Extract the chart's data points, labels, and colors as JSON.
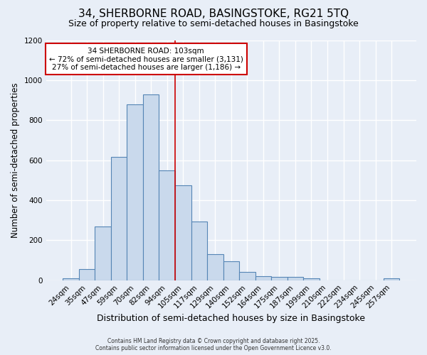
{
  "title_line1": "34, SHERBORNE ROAD, BASINGSTOKE, RG21 5TQ",
  "title_line2": "Size of property relative to semi-detached houses in Basingstoke",
  "xlabel": "Distribution of semi-detached houses by size in Basingstoke",
  "ylabel": "Number of semi-detached properties",
  "categories": [
    "24sqm",
    "35sqm",
    "47sqm",
    "59sqm",
    "70sqm",
    "82sqm",
    "94sqm",
    "105sqm",
    "117sqm",
    "129sqm",
    "140sqm",
    "152sqm",
    "164sqm",
    "175sqm",
    "187sqm",
    "199sqm",
    "210sqm",
    "222sqm",
    "234sqm",
    "245sqm",
    "257sqm"
  ],
  "values": [
    10,
    55,
    270,
    615,
    880,
    930,
    550,
    475,
    295,
    130,
    95,
    40,
    22,
    15,
    15,
    10,
    0,
    0,
    0,
    0,
    10
  ],
  "bar_color": "#c9d9ec",
  "bar_edge_color": "#5585b5",
  "background_color": "#e8eef7",
  "grid_color": "#ffffff",
  "vline_x": 7,
  "vline_color": "#cc0000",
  "annotation_title": "34 SHERBORNE ROAD: 103sqm",
  "annotation_line2": "← 72% of semi-detached houses are smaller (3,131)",
  "annotation_line3": "27% of semi-detached houses are larger (1,186) →",
  "annotation_box_color": "#ffffff",
  "annotation_box_edge": "#cc0000",
  "ylim": [
    0,
    1200
  ],
  "yticks": [
    0,
    200,
    400,
    600,
    800,
    1000,
    1200
  ],
  "footer_line1": "Contains HM Land Registry data © Crown copyright and database right 2025.",
  "footer_line2": "Contains public sector information licensed under the Open Government Licence v3.0.",
  "title_fontsize": 11,
  "subtitle_fontsize": 9,
  "tick_fontsize": 7.5,
  "ylabel_fontsize": 8.5,
  "xlabel_fontsize": 9,
  "annotation_fontsize": 7.5,
  "footer_fontsize": 5.5
}
